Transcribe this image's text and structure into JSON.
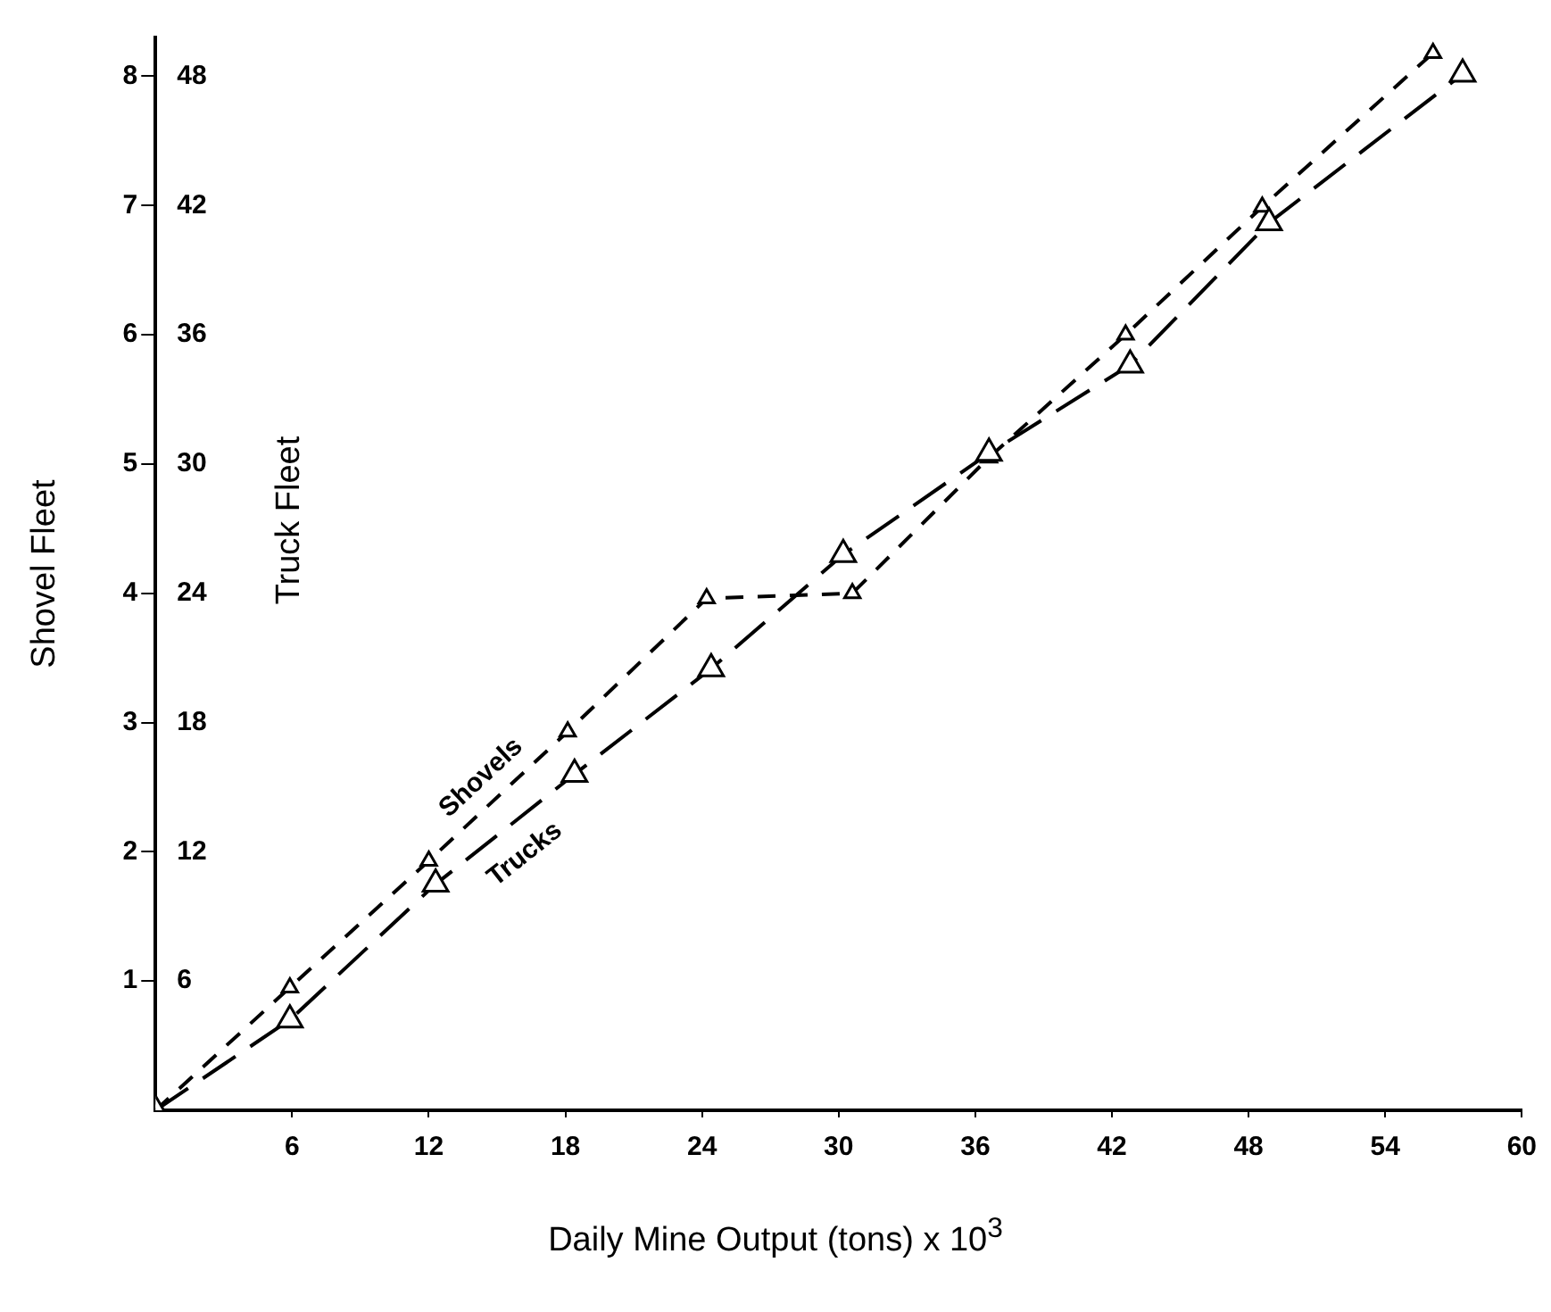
{
  "chart_data": {
    "type": "line",
    "xlabel": "Daily Mine Output (tons)  x 10$^{3}$",
    "ylabel": "Shovel Fleet",
    "y2label": "Truck Fleet",
    "xlim": [
      0,
      60
    ],
    "xticks": [
      6,
      12,
      18,
      24,
      30,
      36,
      42,
      48,
      54,
      60
    ],
    "ylim": [
      0,
      8.3
    ],
    "yticks": [
      1,
      2,
      3,
      4,
      5,
      6,
      7,
      8
    ],
    "y2lim": [
      0,
      49.8
    ],
    "y2ticks": [
      6,
      12,
      18,
      24,
      30,
      36,
      42,
      48
    ],
    "grid": false,
    "legend": false,
    "marker": "triangle",
    "line_style": "dashed",
    "series": [
      {
        "name": "Shovels",
        "color": "#000000",
        "x": [
          0,
          5.9,
          12,
          18.1,
          24.2,
          30.6,
          36.6,
          42.6,
          48.6,
          56.1
        ],
        "values": [
          0,
          0.95,
          1.93,
          2.93,
          3.96,
          4.0,
          5.05,
          6.0,
          6.99,
          8.18
        ]
      },
      {
        "name": "Trucks",
        "color": "#000000",
        "axis": "y2",
        "x": [
          0,
          5.9,
          12.3,
          18.4,
          24.4,
          30.2,
          36.6,
          42.8,
          48.9,
          57.4
        ],
        "values": [
          0,
          4.2,
          10.5,
          15.6,
          20.5,
          25.8,
          30.5,
          34.6,
          41.2,
          48.1
        ]
      }
    ]
  }
}
